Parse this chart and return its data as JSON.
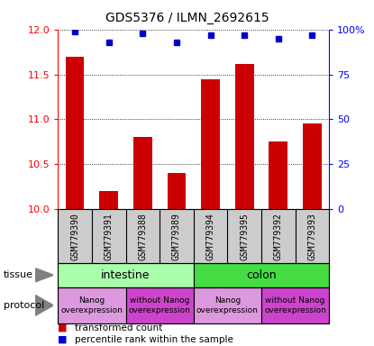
{
  "title": "GDS5376 / ILMN_2692615",
  "samples": [
    "GSM779390",
    "GSM779391",
    "GSM779388",
    "GSM779389",
    "GSM779394",
    "GSM779395",
    "GSM779392",
    "GSM779393"
  ],
  "bar_values": [
    11.7,
    10.2,
    10.8,
    10.4,
    11.45,
    11.62,
    10.75,
    10.95
  ],
  "percentile_values": [
    99,
    93,
    98,
    93,
    97,
    97,
    95,
    97
  ],
  "ylim_left": [
    10.0,
    12.0
  ],
  "ylim_right": [
    0,
    100
  ],
  "yticks_left": [
    10.0,
    10.5,
    11.0,
    11.5,
    12.0
  ],
  "yticks_right": [
    0,
    25,
    50,
    75,
    100
  ],
  "ytick_labels_right": [
    "0",
    "25",
    "50",
    "75",
    "100%"
  ],
  "bar_color": "#cc0000",
  "dot_color": "#0000cc",
  "tissue_intestine_color": "#aaffaa",
  "tissue_colon_color": "#44dd44",
  "protocol_light_color": "#dd99dd",
  "protocol_dark_color": "#cc44cc",
  "sample_box_color": "#cccccc",
  "tissue_intestine_label": "intestine",
  "tissue_colon_label": "colon",
  "protocol_labels": [
    "Nanog\noverexpression",
    "without Nanog\noverexpression",
    "Nanog\noverexpression",
    "without Nanog\noverexpression"
  ],
  "legend_red_label": "transformed count",
  "legend_blue_label": "percentile rank within the sample",
  "left_label_tissue": "tissue",
  "left_label_protocol": "protocol"
}
